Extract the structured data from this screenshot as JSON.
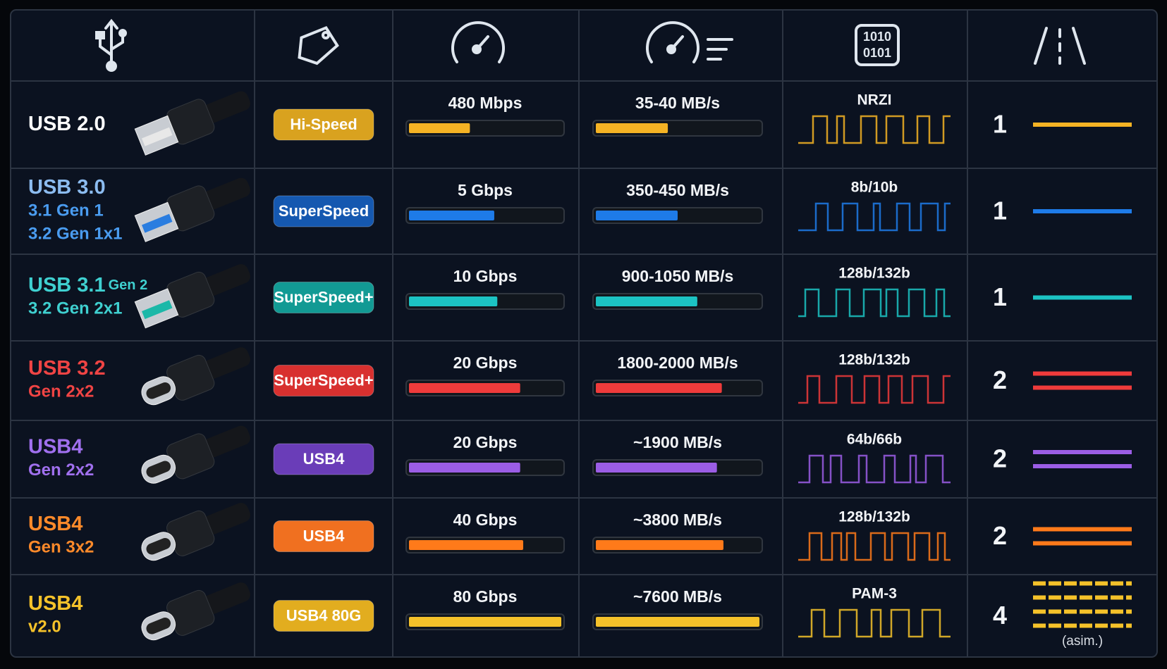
{
  "header": {
    "binary": [
      "1010",
      "0101"
    ]
  },
  "rows": [
    {
      "title": "USB 2.0",
      "sub": [],
      "title_color": "#ffffff",
      "sub_color": "#ffffff",
      "badge": "Hi-Speed",
      "badge_color": "#d9a21f",
      "speed": "480 Mbps",
      "throughput": "35-40 MB/s",
      "encoding": "NRZI",
      "lanes": 1,
      "color": "#f5b324",
      "connector": "A",
      "insert_color": "#e8e8e8"
    },
    {
      "title": "USB 3.0",
      "sub": [
        "3.1 Gen 1",
        "3.2 Gen 1x1"
      ],
      "title_color": "#8cbcf0",
      "sub_color": "#4a9cf0",
      "badge": "SuperSpeed",
      "badge_color": "#1558b0",
      "speed": "5 Gbps",
      "throughput": "350-450 MB/s",
      "encoding": "8b/10b",
      "lanes": 1,
      "color": "#1e7be8",
      "connector": "A",
      "insert_color": "#2a7de0"
    },
    {
      "title": "USB 3.1",
      "title_small": "Gen 2",
      "sub": [
        "3.2 Gen 2x1"
      ],
      "title_color": "#3fd0d0",
      "sub_color": "#3fd0d0",
      "badge": "SuperSpeed+",
      "badge_color": "#129a94",
      "speed": "10 Gbps",
      "throughput": "900-1050 MB/s",
      "encoding": "128b/132b",
      "lanes": 1,
      "color": "#1cc3c3",
      "connector": "A",
      "insert_color": "#1cb8a8"
    },
    {
      "title": "USB 3.2",
      "sub": [
        "Gen 2x2"
      ],
      "title_color": "#f04444",
      "sub_color": "#f04444",
      "badge": "SuperSpeed+",
      "badge_color": "#d8302f",
      "speed": "20 Gbps",
      "throughput": "1800-2000 MB/s",
      "encoding": "128b/132b",
      "lanes": 2,
      "color": "#ef3b3b",
      "connector": "C"
    },
    {
      "title": "USB4",
      "sub": [
        "Gen 2x2"
      ],
      "title_color": "#a070ee",
      "sub_color": "#a070ee",
      "badge": "USB4",
      "badge_color": "#6a3db8",
      "speed": "20 Gbps",
      "throughput": "~1900 MB/s",
      "encoding": "64b/66b",
      "lanes": 2,
      "color": "#9b5de5",
      "connector": "C"
    },
    {
      "title": "USB4",
      "sub": [
        "Gen 3x2"
      ],
      "title_color": "#ff8a2a",
      "sub_color": "#ff8a2a",
      "badge": "USB4",
      "badge_color": "#f07020",
      "speed": "40 Gbps",
      "throughput": "~3800 MB/s",
      "encoding": "128b/132b",
      "lanes": 2,
      "color": "#ff7a1a",
      "connector": "C"
    },
    {
      "title": "USB4",
      "sub": [
        "v2.0"
      ],
      "title_color": "#f5c22a",
      "sub_color": "#f5c22a",
      "badge": "USB4 80G",
      "badge_color": "#e2ad1f",
      "speed": "80 Gbps",
      "throughput": "~7600 MB/s",
      "encoding": "PAM-3",
      "lanes": 4,
      "color": "#f5c22a",
      "connector": "C",
      "lanes_note": "(asim.)"
    }
  ]
}
